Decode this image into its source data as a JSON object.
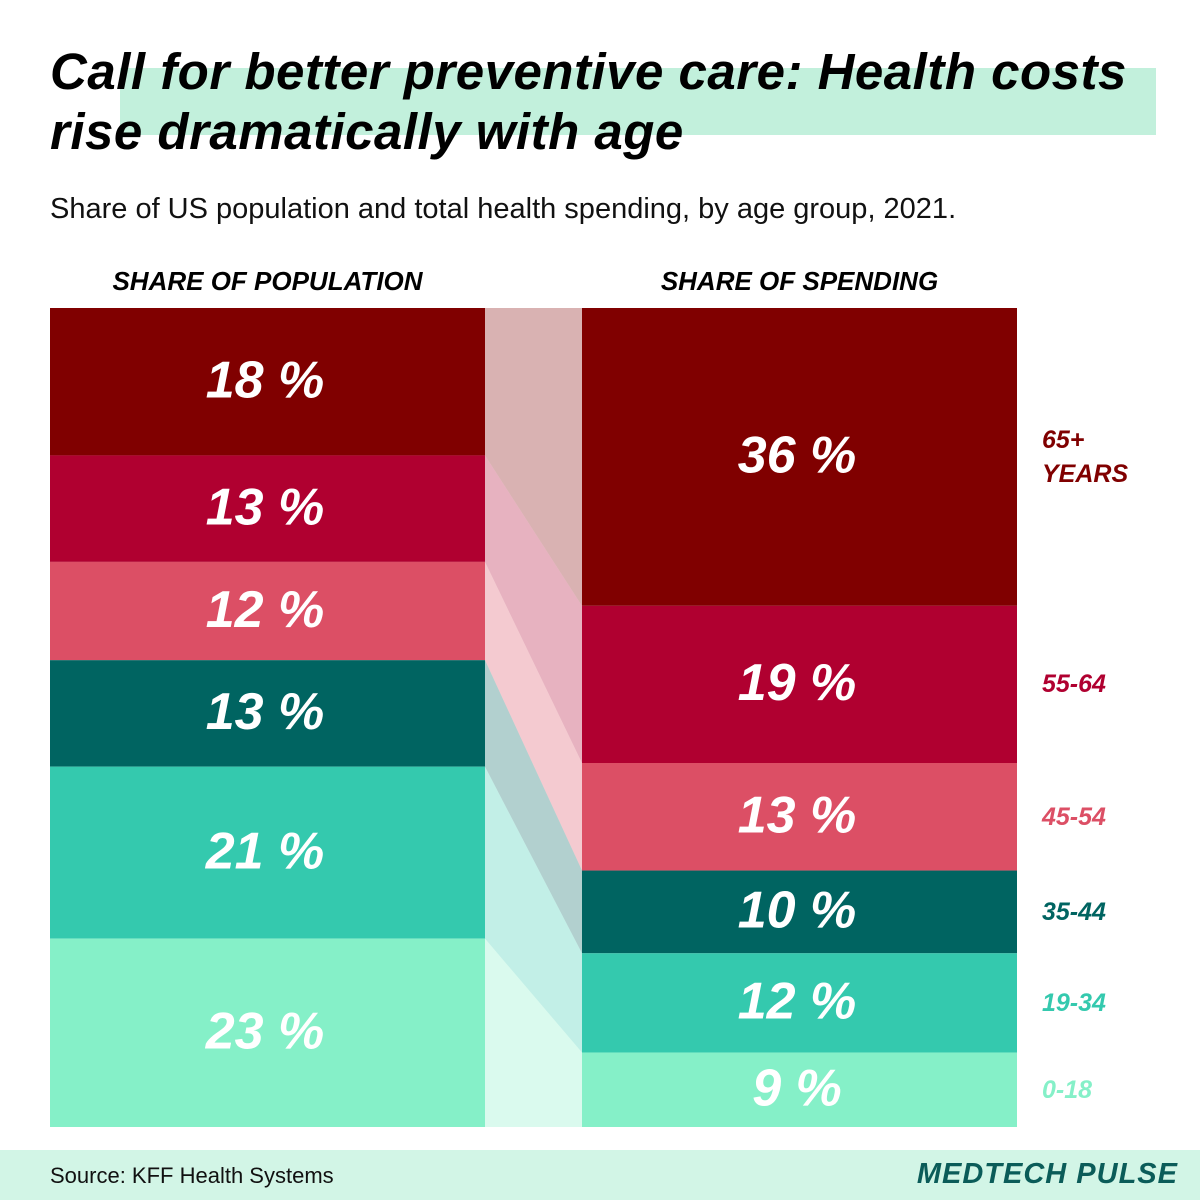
{
  "chart_data": {
    "type": "stacked-columns",
    "title": "Call for better preventive care: Health costs rise dramatically with age",
    "subtitle": "Share of US population and total health spending, by age group, 2021.",
    "categories": [
      "SHARE OF POPULATION",
      "SHARE OF SPENDING"
    ],
    "series": [
      {
        "name": "65+ YEARS",
        "color": "#800000",
        "values": [
          18,
          36
        ],
        "value_labels": [
          "18 %",
          "36 %"
        ]
      },
      {
        "name": "55-64",
        "color": "#b00030",
        "values": [
          13,
          19
        ],
        "value_labels": [
          "13 %",
          "19 %"
        ]
      },
      {
        "name": "45-54",
        "color": "#dc4f65",
        "values": [
          12,
          13
        ],
        "value_labels": [
          "12 %",
          "13 %"
        ]
      },
      {
        "name": "35-44",
        "color": "#006461",
        "values": [
          13,
          10
        ],
        "value_labels": [
          "13 %",
          "10 %"
        ]
      },
      {
        "name": "19-34",
        "color": "#34c9ae",
        "values": [
          21,
          12
        ],
        "value_labels": [
          "21 %",
          "12 %"
        ]
      },
      {
        "name": "0-18",
        "color": "#85f0c8",
        "values": [
          23,
          9
        ],
        "value_labels": [
          "23 %",
          "9 %"
        ]
      }
    ],
    "source": "Source: KFF Health Systems",
    "brand": "MEDTECH PULSE"
  }
}
